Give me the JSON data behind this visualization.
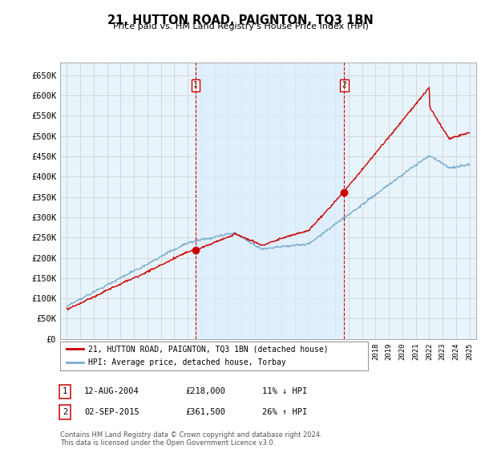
{
  "title": "21, HUTTON ROAD, PAIGNTON, TQ3 1BN",
  "subtitle": "Price paid vs. HM Land Registry's House Price Index (HPI)",
  "ylabel_ticks": [
    "£0",
    "£50K",
    "£100K",
    "£150K",
    "£200K",
    "£250K",
    "£300K",
    "£350K",
    "£400K",
    "£450K",
    "£500K",
    "£550K",
    "£600K",
    "£650K"
  ],
  "ytick_values": [
    0,
    50000,
    100000,
    150000,
    200000,
    250000,
    300000,
    350000,
    400000,
    450000,
    500000,
    550000,
    600000,
    650000
  ],
  "ylim": [
    0,
    680000
  ],
  "xlim_start": 1994.5,
  "xlim_end": 2025.5,
  "transaction1_x": 2004.6,
  "transaction1_y": 218000,
  "transaction2_x": 2015.67,
  "transaction2_y": 361500,
  "legend_line1": "21, HUTTON ROAD, PAIGNTON, TQ3 1BN (detached house)",
  "legend_line2": "HPI: Average price, detached house, Torbay",
  "annotation1_label": "1",
  "annotation1_date": "12-AUG-2004",
  "annotation1_price": "£218,000",
  "annotation1_hpi": "11% ↓ HPI",
  "annotation2_label": "2",
  "annotation2_date": "02-SEP-2015",
  "annotation2_price": "£361,500",
  "annotation2_hpi": "26% ↑ HPI",
  "footer": "Contains HM Land Registry data © Crown copyright and database right 2024.\nThis data is licensed under the Open Government Licence v3.0.",
  "line_color_red": "#cc0000",
  "line_color_blue": "#7aadcc",
  "background_color": "#ffffff",
  "grid_color": "#cccccc",
  "dashed_line_color": "#cc0000",
  "shaded_bg_color": "#ddeeff"
}
